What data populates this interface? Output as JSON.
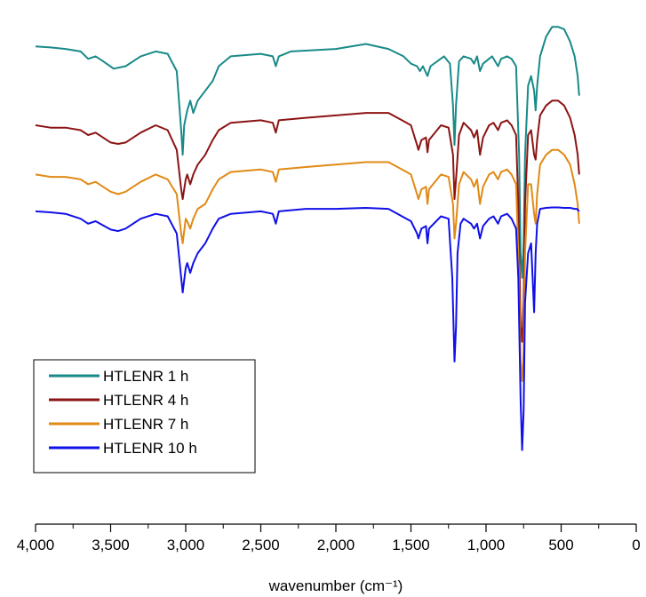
{
  "chart_data": {
    "type": "line",
    "title": "",
    "xlabel": "wavenumber (cm⁻¹)",
    "ylabel": "",
    "xlim": [
      4000,
      0
    ],
    "x_inverted": true,
    "y_ticks_shown": false,
    "grid": false,
    "legend_position": "bottom-left",
    "x_ticks": [
      4000,
      3500,
      3000,
      2500,
      2000,
      1500,
      1000,
      500,
      0
    ],
    "x_tick_labels": [
      "4,000",
      "3,500",
      "3,000",
      "2,500",
      "2,000",
      "1,500",
      "1,000",
      "500",
      "0"
    ],
    "series": [
      {
        "name": "HTLENR 1 h",
        "color": "#188a88",
        "points": [
          [
            4000,
            0.92
          ],
          [
            3900,
            0.918
          ],
          [
            3800,
            0.915
          ],
          [
            3700,
            0.91
          ],
          [
            3650,
            0.895
          ],
          [
            3600,
            0.9
          ],
          [
            3550,
            0.89
          ],
          [
            3480,
            0.875
          ],
          [
            3400,
            0.88
          ],
          [
            3300,
            0.9
          ],
          [
            3200,
            0.91
          ],
          [
            3120,
            0.905
          ],
          [
            3060,
            0.87
          ],
          [
            3030,
            0.75
          ],
          [
            3020,
            0.7
          ],
          [
            3010,
            0.76
          ],
          [
            2990,
            0.79
          ],
          [
            2970,
            0.81
          ],
          [
            2950,
            0.785
          ],
          [
            2920,
            0.81
          ],
          [
            2870,
            0.83
          ],
          [
            2820,
            0.85
          ],
          [
            2780,
            0.88
          ],
          [
            2700,
            0.9
          ],
          [
            2500,
            0.905
          ],
          [
            2420,
            0.9
          ],
          [
            2400,
            0.88
          ],
          [
            2380,
            0.9
          ],
          [
            2300,
            0.91
          ],
          [
            2000,
            0.915
          ],
          [
            1800,
            0.925
          ],
          [
            1650,
            0.915
          ],
          [
            1550,
            0.9
          ],
          [
            1500,
            0.885
          ],
          [
            1460,
            0.88
          ],
          [
            1440,
            0.87
          ],
          [
            1420,
            0.88
          ],
          [
            1390,
            0.86
          ],
          [
            1370,
            0.88
          ],
          [
            1280,
            0.9
          ],
          [
            1240,
            0.885
          ],
          [
            1220,
            0.8
          ],
          [
            1210,
            0.72
          ],
          [
            1200,
            0.8
          ],
          [
            1180,
            0.89
          ],
          [
            1150,
            0.9
          ],
          [
            1100,
            0.895
          ],
          [
            1080,
            0.885
          ],
          [
            1060,
            0.9
          ],
          [
            1040,
            0.87
          ],
          [
            1020,
            0.885
          ],
          [
            980,
            0.895
          ],
          [
            960,
            0.9
          ],
          [
            920,
            0.88
          ],
          [
            900,
            0.895
          ],
          [
            860,
            0.9
          ],
          [
            830,
            0.895
          ],
          [
            800,
            0.88
          ],
          [
            780,
            0.7
          ],
          [
            770,
            0.5
          ],
          [
            760,
            0.45
          ],
          [
            750,
            0.52
          ],
          [
            740,
            0.7
          ],
          [
            720,
            0.84
          ],
          [
            700,
            0.86
          ],
          [
            680,
            0.83
          ],
          [
            670,
            0.79
          ],
          [
            660,
            0.84
          ],
          [
            640,
            0.9
          ],
          [
            600,
            0.94
          ],
          [
            560,
            0.96
          ],
          [
            520,
            0.96
          ],
          [
            480,
            0.955
          ],
          [
            440,
            0.93
          ],
          [
            410,
            0.9
          ],
          [
            390,
            0.86
          ],
          [
            380,
            0.82
          ]
        ]
      },
      {
        "name": "HTLENR 4 h",
        "color": "#8b1414",
        "points": [
          [
            4000,
            0.76
          ],
          [
            3900,
            0.755
          ],
          [
            3800,
            0.755
          ],
          [
            3700,
            0.75
          ],
          [
            3650,
            0.74
          ],
          [
            3600,
            0.745
          ],
          [
            3500,
            0.725
          ],
          [
            3450,
            0.722
          ],
          [
            3400,
            0.725
          ],
          [
            3300,
            0.745
          ],
          [
            3200,
            0.76
          ],
          [
            3120,
            0.75
          ],
          [
            3060,
            0.71
          ],
          [
            3030,
            0.63
          ],
          [
            3020,
            0.61
          ],
          [
            3000,
            0.65
          ],
          [
            2990,
            0.66
          ],
          [
            2970,
            0.64
          ],
          [
            2950,
            0.66
          ],
          [
            2920,
            0.68
          ],
          [
            2870,
            0.7
          ],
          [
            2820,
            0.73
          ],
          [
            2780,
            0.75
          ],
          [
            2700,
            0.765
          ],
          [
            2500,
            0.77
          ],
          [
            2420,
            0.765
          ],
          [
            2400,
            0.745
          ],
          [
            2380,
            0.77
          ],
          [
            2200,
            0.775
          ],
          [
            2000,
            0.78
          ],
          [
            1800,
            0.785
          ],
          [
            1650,
            0.785
          ],
          [
            1560,
            0.77
          ],
          [
            1500,
            0.76
          ],
          [
            1460,
            0.72
          ],
          [
            1450,
            0.71
          ],
          [
            1430,
            0.73
          ],
          [
            1400,
            0.735
          ],
          [
            1390,
            0.705
          ],
          [
            1380,
            0.73
          ],
          [
            1300,
            0.76
          ],
          [
            1250,
            0.755
          ],
          [
            1220,
            0.7
          ],
          [
            1210,
            0.61
          ],
          [
            1200,
            0.65
          ],
          [
            1180,
            0.74
          ],
          [
            1150,
            0.765
          ],
          [
            1100,
            0.75
          ],
          [
            1080,
            0.735
          ],
          [
            1060,
            0.75
          ],
          [
            1040,
            0.7
          ],
          [
            1020,
            0.735
          ],
          [
            980,
            0.76
          ],
          [
            950,
            0.765
          ],
          [
            920,
            0.75
          ],
          [
            900,
            0.765
          ],
          [
            860,
            0.77
          ],
          [
            830,
            0.76
          ],
          [
            800,
            0.74
          ],
          [
            785,
            0.6
          ],
          [
            770,
            0.35
          ],
          [
            760,
            0.32
          ],
          [
            750,
            0.4
          ],
          [
            740,
            0.6
          ],
          [
            720,
            0.74
          ],
          [
            700,
            0.75
          ],
          [
            680,
            0.7
          ],
          [
            670,
            0.69
          ],
          [
            660,
            0.73
          ],
          [
            640,
            0.78
          ],
          [
            600,
            0.8
          ],
          [
            560,
            0.81
          ],
          [
            520,
            0.81
          ],
          [
            480,
            0.8
          ],
          [
            440,
            0.775
          ],
          [
            410,
            0.74
          ],
          [
            390,
            0.7
          ],
          [
            380,
            0.66
          ]
        ]
      },
      {
        "name": "HTLENR 7 h",
        "color": "#e08a16",
        "points": [
          [
            4000,
            0.66
          ],
          [
            3900,
            0.655
          ],
          [
            3800,
            0.655
          ],
          [
            3700,
            0.65
          ],
          [
            3650,
            0.64
          ],
          [
            3600,
            0.645
          ],
          [
            3500,
            0.625
          ],
          [
            3450,
            0.62
          ],
          [
            3400,
            0.625
          ],
          [
            3300,
            0.645
          ],
          [
            3200,
            0.66
          ],
          [
            3120,
            0.65
          ],
          [
            3060,
            0.62
          ],
          [
            3030,
            0.54
          ],
          [
            3020,
            0.52
          ],
          [
            3000,
            0.57
          ],
          [
            2990,
            0.565
          ],
          [
            2970,
            0.55
          ],
          [
            2950,
            0.57
          ],
          [
            2920,
            0.59
          ],
          [
            2870,
            0.6
          ],
          [
            2820,
            0.63
          ],
          [
            2780,
            0.65
          ],
          [
            2700,
            0.665
          ],
          [
            2500,
            0.67
          ],
          [
            2420,
            0.665
          ],
          [
            2400,
            0.645
          ],
          [
            2380,
            0.67
          ],
          [
            2200,
            0.675
          ],
          [
            2000,
            0.68
          ],
          [
            1800,
            0.685
          ],
          [
            1650,
            0.685
          ],
          [
            1560,
            0.67
          ],
          [
            1500,
            0.66
          ],
          [
            1460,
            0.62
          ],
          [
            1450,
            0.61
          ],
          [
            1430,
            0.63
          ],
          [
            1400,
            0.635
          ],
          [
            1390,
            0.6
          ],
          [
            1380,
            0.63
          ],
          [
            1300,
            0.66
          ],
          [
            1250,
            0.655
          ],
          [
            1220,
            0.6
          ],
          [
            1210,
            0.53
          ],
          [
            1200,
            0.56
          ],
          [
            1180,
            0.64
          ],
          [
            1150,
            0.665
          ],
          [
            1100,
            0.65
          ],
          [
            1080,
            0.635
          ],
          [
            1060,
            0.65
          ],
          [
            1040,
            0.6
          ],
          [
            1020,
            0.635
          ],
          [
            980,
            0.66
          ],
          [
            950,
            0.665
          ],
          [
            920,
            0.65
          ],
          [
            900,
            0.665
          ],
          [
            860,
            0.67
          ],
          [
            830,
            0.66
          ],
          [
            800,
            0.64
          ],
          [
            785,
            0.5
          ],
          [
            770,
            0.28
          ],
          [
            760,
            0.24
          ],
          [
            750,
            0.3
          ],
          [
            740,
            0.5
          ],
          [
            720,
            0.64
          ],
          [
            700,
            0.64
          ],
          [
            680,
            0.58
          ],
          [
            670,
            0.56
          ],
          [
            660,
            0.62
          ],
          [
            640,
            0.68
          ],
          [
            600,
            0.7
          ],
          [
            560,
            0.71
          ],
          [
            520,
            0.71
          ],
          [
            480,
            0.7
          ],
          [
            440,
            0.68
          ],
          [
            410,
            0.64
          ],
          [
            390,
            0.6
          ],
          [
            380,
            0.56
          ]
        ]
      },
      {
        "name": "HTLENR 10 h",
        "color": "#1010e8",
        "points": [
          [
            4000,
            0.585
          ],
          [
            3900,
            0.583
          ],
          [
            3800,
            0.58
          ],
          [
            3700,
            0.57
          ],
          [
            3650,
            0.56
          ],
          [
            3600,
            0.565
          ],
          [
            3500,
            0.548
          ],
          [
            3450,
            0.545
          ],
          [
            3400,
            0.55
          ],
          [
            3300,
            0.57
          ],
          [
            3200,
            0.58
          ],
          [
            3120,
            0.575
          ],
          [
            3060,
            0.54
          ],
          [
            3030,
            0.45
          ],
          [
            3020,
            0.42
          ],
          [
            3000,
            0.47
          ],
          [
            2990,
            0.48
          ],
          [
            2970,
            0.46
          ],
          [
            2950,
            0.48
          ],
          [
            2920,
            0.5
          ],
          [
            2870,
            0.52
          ],
          [
            2820,
            0.55
          ],
          [
            2780,
            0.57
          ],
          [
            2700,
            0.58
          ],
          [
            2500,
            0.585
          ],
          [
            2420,
            0.58
          ],
          [
            2400,
            0.56
          ],
          [
            2380,
            0.585
          ],
          [
            2200,
            0.59
          ],
          [
            2000,
            0.59
          ],
          [
            1800,
            0.592
          ],
          [
            1650,
            0.59
          ],
          [
            1560,
            0.575
          ],
          [
            1500,
            0.565
          ],
          [
            1460,
            0.54
          ],
          [
            1450,
            0.53
          ],
          [
            1430,
            0.55
          ],
          [
            1400,
            0.555
          ],
          [
            1390,
            0.52
          ],
          [
            1380,
            0.55
          ],
          [
            1300,
            0.575
          ],
          [
            1250,
            0.57
          ],
          [
            1225,
            0.45
          ],
          [
            1210,
            0.28
          ],
          [
            1200,
            0.35
          ],
          [
            1190,
            0.5
          ],
          [
            1170,
            0.56
          ],
          [
            1150,
            0.57
          ],
          [
            1100,
            0.56
          ],
          [
            1080,
            0.55
          ],
          [
            1060,
            0.56
          ],
          [
            1040,
            0.53
          ],
          [
            1020,
            0.555
          ],
          [
            980,
            0.57
          ],
          [
            950,
            0.575
          ],
          [
            920,
            0.56
          ],
          [
            900,
            0.575
          ],
          [
            860,
            0.58
          ],
          [
            830,
            0.57
          ],
          [
            800,
            0.55
          ],
          [
            785,
            0.45
          ],
          [
            770,
            0.2
          ],
          [
            760,
            0.1
          ],
          [
            750,
            0.18
          ],
          [
            740,
            0.4
          ],
          [
            720,
            0.5
          ],
          [
            700,
            0.52
          ],
          [
            690,
            0.45
          ],
          [
            680,
            0.38
          ],
          [
            670,
            0.5
          ],
          [
            660,
            0.56
          ],
          [
            640,
            0.59
          ],
          [
            600,
            0.592
          ],
          [
            560,
            0.593
          ],
          [
            520,
            0.593
          ],
          [
            480,
            0.592
          ],
          [
            440,
            0.592
          ],
          [
            410,
            0.59
          ],
          [
            395,
            0.59
          ],
          [
            380,
            0.585
          ]
        ]
      }
    ]
  }
}
